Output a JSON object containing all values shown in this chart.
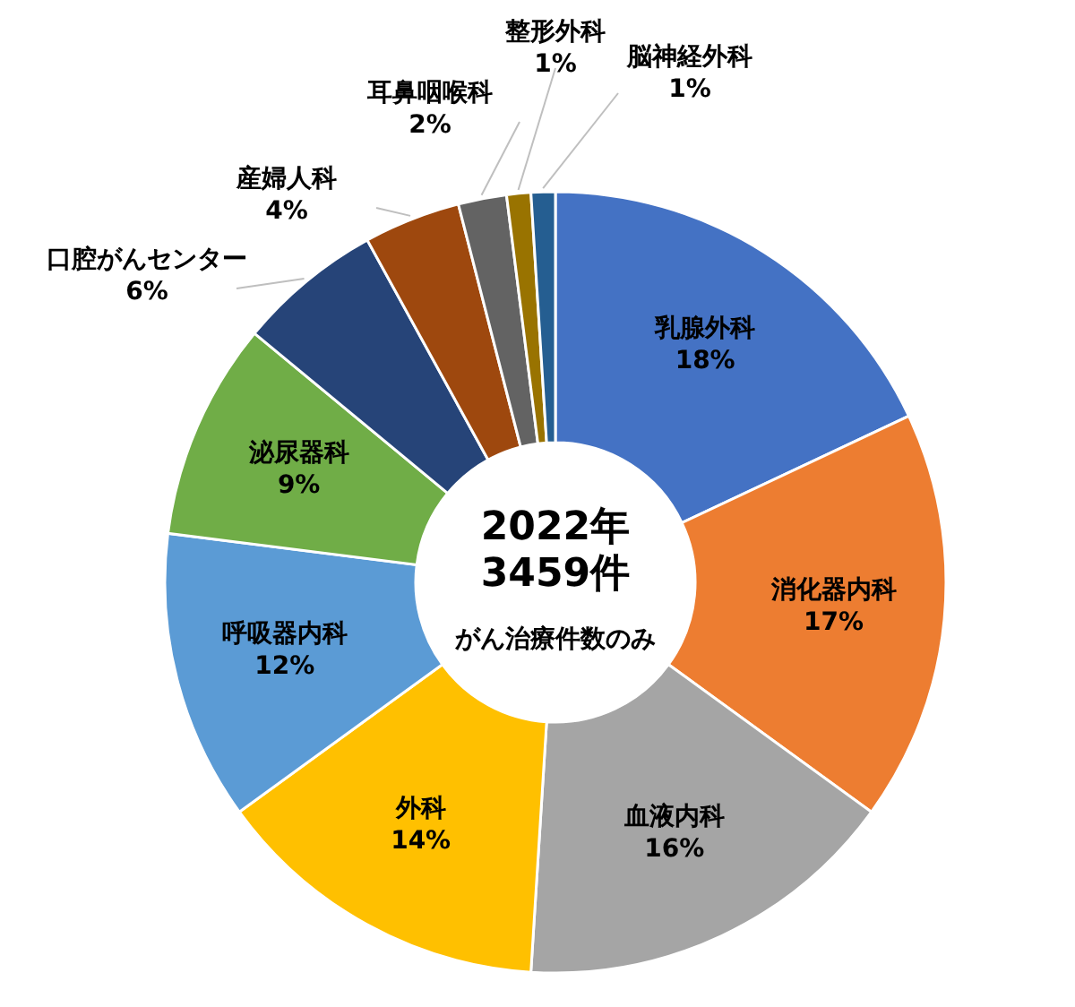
{
  "chart_data": {
    "type": "donut",
    "categories": [
      "乳腺外科",
      "消化器内科",
      "血液内科",
      "外科",
      "呼吸器内科",
      "泌尿器科",
      "口腔がんセンター",
      "産婦人科",
      "耳鼻咽喉科",
      "整形外科",
      "脳神経外科"
    ],
    "values": [
      18,
      17,
      16,
      14,
      12,
      9,
      6,
      4,
      2,
      1,
      1
    ],
    "value_labels": [
      "18%",
      "17%",
      "16%",
      "14%",
      "12%",
      "9%",
      "6%",
      "4%",
      "2%",
      "1%",
      "1%"
    ],
    "colors": [
      "#4472c4",
      "#ed7d31",
      "#a5a5a5",
      "#ffc000",
      "#5b9bd5",
      "#70ad47",
      "#264478",
      "#9e480e",
      "#636363",
      "#997300",
      "#255e91"
    ],
    "annotations": [
      "2022年",
      "3459件",
      "がん治療件数のみ"
    ]
  }
}
